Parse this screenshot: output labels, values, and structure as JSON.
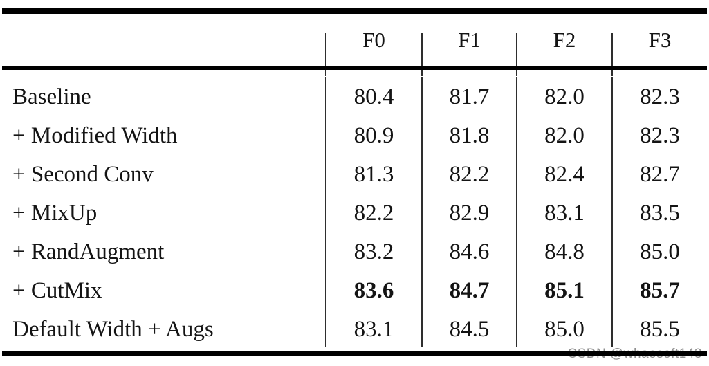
{
  "chart_data": {
    "type": "table",
    "columns": [
      "F0",
      "F1",
      "F2",
      "F3"
    ],
    "rows": [
      {
        "label": "Baseline",
        "values": [
          "80.4",
          "81.7",
          "82.0",
          "82.3"
        ],
        "bold_values": false
      },
      {
        "label": "+ Modified Width",
        "values": [
          "80.9",
          "81.8",
          "82.0",
          "82.3"
        ],
        "bold_values": false
      },
      {
        "label": "+ Second Conv",
        "values": [
          "81.3",
          "82.2",
          "82.4",
          "82.7"
        ],
        "bold_values": false
      },
      {
        "label": "+ MixUp",
        "values": [
          "82.2",
          "82.9",
          "83.1",
          "83.5"
        ],
        "bold_values": false
      },
      {
        "label": "+ RandAugment",
        "values": [
          "83.2",
          "84.6",
          "84.8",
          "85.0"
        ],
        "bold_values": false
      },
      {
        "label": "+ CutMix",
        "values": [
          "83.6",
          "84.7",
          "85.1",
          "85.7"
        ],
        "bold_values": true
      },
      {
        "label": "Default Width + Augs",
        "values": [
          "83.1",
          "84.5",
          "85.0",
          "85.5"
        ],
        "bold_values": false
      }
    ]
  },
  "watermark": {
    "text": "CSDN @whaosoft143"
  },
  "colors": {
    "text": "#141414",
    "rule": "#000000",
    "divider": "#2e2e2e",
    "watermark": "#8f8f8f",
    "background": "#ffffff"
  }
}
